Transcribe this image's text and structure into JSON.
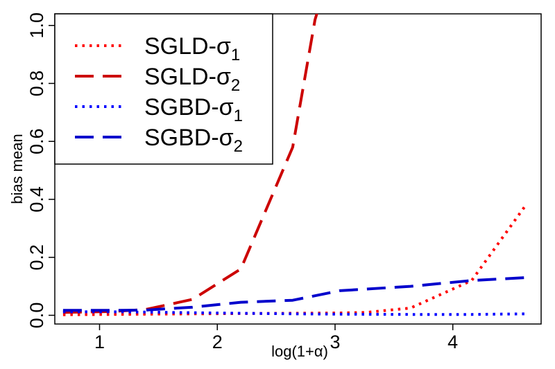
{
  "chart_data": {
    "type": "line",
    "title": "",
    "xlabel": "log(1+α)",
    "ylabel": "bias mean",
    "xlim": [
      0.62,
      4.75
    ],
    "ylim": [
      -0.03,
      1.04
    ],
    "xticks": [
      1,
      2,
      3,
      4
    ],
    "xtick_labels": [
      "1",
      "2",
      "3",
      "4"
    ],
    "yticks": [
      0.0,
      0.2,
      0.4,
      0.6,
      0.8,
      1.0
    ],
    "ytick_labels": [
      "0.0",
      "0.2",
      "0.4",
      "0.6",
      "0.8",
      "1.0"
    ],
    "grid": false,
    "legend_position": "top-left",
    "series": [
      {
        "name": "SGLD-σ1",
        "legend_main": "SGLD-σ",
        "legend_sub": "1",
        "color": "#ff0000",
        "style": "dotted",
        "x": [
          0.69,
          1.1,
          1.39,
          1.79,
          2.2,
          2.64,
          3.04,
          3.26,
          3.64,
          4.16,
          4.62
        ],
        "y": [
          0.002,
          0.003,
          0.004,
          0.005,
          0.006,
          0.007,
          0.008,
          0.01,
          0.025,
          0.12,
          0.38
        ]
      },
      {
        "name": "SGLD-σ2",
        "legend_main": "SGLD-σ",
        "legend_sub": "2",
        "color": "#cc0000",
        "style": "dashed",
        "x": [
          0.69,
          1.1,
          1.39,
          1.79,
          2.2,
          2.64,
          2.83,
          2.86
        ],
        "y": [
          0.01,
          0.013,
          0.02,
          0.055,
          0.16,
          0.58,
          1.02,
          1.06
        ]
      },
      {
        "name": "SGBD-σ1",
        "legend_main": "SGBD-σ",
        "legend_sub": "1",
        "color": "#0000ff",
        "style": "dotted",
        "x": [
          0.69,
          1.1,
          1.39,
          1.79,
          2.2,
          2.64,
          3.04,
          3.64,
          4.16,
          4.62
        ],
        "y": [
          0.012,
          0.012,
          0.011,
          0.009,
          0.007,
          0.005,
          0.004,
          0.003,
          0.003,
          0.005
        ]
      },
      {
        "name": "SGBD-σ2",
        "legend_main": "SGBD-σ",
        "legend_sub": "2",
        "color": "#0000cc",
        "style": "dashed",
        "x": [
          0.69,
          1.1,
          1.39,
          1.79,
          2.2,
          2.64,
          3.04,
          3.64,
          4.16,
          4.62
        ],
        "y": [
          0.017,
          0.017,
          0.018,
          0.028,
          0.045,
          0.052,
          0.085,
          0.1,
          0.12,
          0.13
        ]
      }
    ]
  }
}
